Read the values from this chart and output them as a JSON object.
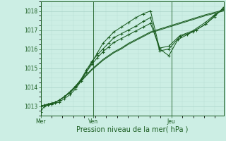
{
  "xlabel": "Pression niveau de la mer( hPa )",
  "bg_color": "#cceee4",
  "grid_color_major": "#aad4c8",
  "grid_color_minor": "#b8ddd4",
  "line_color": "#1a5c20",
  "ylim": [
    1012.5,
    1018.5
  ],
  "yticks": [
    1013,
    1014,
    1015,
    1016,
    1017,
    1018
  ],
  "day_labels": [
    "Mer",
    "Ven",
    "Jeu"
  ],
  "day_positions": [
    0.0,
    0.286,
    0.714
  ],
  "xlim": [
    0.0,
    1.0
  ],
  "series": [
    {
      "x": [
        0.0,
        0.02,
        0.04,
        0.06,
        0.08,
        0.1,
        0.13,
        0.16,
        0.19,
        0.22,
        0.25,
        0.28,
        0.31,
        0.34,
        0.37,
        0.4,
        0.44,
        0.48,
        0.52,
        0.56,
        0.6,
        0.65,
        0.7,
        0.75,
        0.8,
        0.85,
        0.9,
        0.95,
        1.0
      ],
      "y": [
        1012.7,
        1013.0,
        1013.05,
        1013.1,
        1013.15,
        1013.2,
        1013.4,
        1013.6,
        1013.9,
        1014.3,
        1014.8,
        1015.3,
        1015.8,
        1016.3,
        1016.6,
        1016.9,
        1017.15,
        1017.4,
        1017.65,
        1017.85,
        1018.0,
        1016.0,
        1015.65,
        1016.5,
        1016.75,
        1017.0,
        1017.3,
        1017.7,
        1018.2
      ],
      "has_marker": true
    },
    {
      "x": [
        0.0,
        0.02,
        0.04,
        0.06,
        0.08,
        0.1,
        0.13,
        0.16,
        0.19,
        0.22,
        0.25,
        0.28,
        0.31,
        0.34,
        0.37,
        0.4,
        0.44,
        0.48,
        0.52,
        0.56,
        0.6,
        0.65,
        0.7,
        0.76,
        0.83,
        0.9,
        0.95,
        1.0
      ],
      "y": [
        1013.0,
        1013.05,
        1013.1,
        1013.1,
        1013.2,
        1013.3,
        1013.5,
        1013.7,
        1014.0,
        1014.4,
        1014.9,
        1015.35,
        1015.7,
        1016.0,
        1016.3,
        1016.6,
        1016.8,
        1017.0,
        1017.2,
        1017.45,
        1017.65,
        1015.9,
        1016.0,
        1016.65,
        1016.9,
        1017.3,
        1017.75,
        1018.15
      ],
      "has_marker": true
    },
    {
      "x": [
        0.0,
        0.02,
        0.04,
        0.06,
        0.08,
        0.1,
        0.13,
        0.16,
        0.19,
        0.22,
        0.25,
        0.28,
        0.31,
        0.34,
        0.37,
        0.4,
        0.44,
        0.48,
        0.52,
        0.56,
        0.6,
        0.65,
        0.7,
        0.76,
        0.83,
        0.9,
        0.95,
        1.0
      ],
      "y": [
        1013.0,
        1013.05,
        1013.1,
        1013.15,
        1013.2,
        1013.3,
        1013.5,
        1013.75,
        1014.05,
        1014.4,
        1014.8,
        1015.2,
        1015.55,
        1015.85,
        1016.1,
        1016.35,
        1016.55,
        1016.75,
        1016.95,
        1017.15,
        1017.35,
        1016.05,
        1016.15,
        1016.7,
        1016.95,
        1017.4,
        1017.8,
        1018.1
      ],
      "has_marker": true
    },
    {
      "x": [
        0.0,
        0.02,
        0.04,
        0.06,
        0.08,
        0.1,
        0.13,
        0.16,
        0.19,
        0.22,
        0.25,
        0.28,
        0.31,
        0.34,
        0.37,
        0.4,
        0.44,
        0.48,
        0.52,
        0.56,
        0.6,
        0.7,
        0.8,
        0.9,
        1.0
      ],
      "y": [
        1013.0,
        1013.05,
        1013.1,
        1013.15,
        1013.2,
        1013.3,
        1013.5,
        1013.75,
        1014.05,
        1014.35,
        1014.65,
        1014.95,
        1015.2,
        1015.45,
        1015.65,
        1015.85,
        1016.05,
        1016.3,
        1016.5,
        1016.7,
        1016.9,
        1017.2,
        1017.5,
        1017.8,
        1018.05
      ],
      "has_marker": false
    },
    {
      "x": [
        0.0,
        0.02,
        0.04,
        0.06,
        0.08,
        0.1,
        0.13,
        0.16,
        0.19,
        0.22,
        0.25,
        0.28,
        0.31,
        0.34,
        0.37,
        0.4,
        0.44,
        0.48,
        0.52,
        0.56,
        0.6,
        0.7,
        0.8,
        0.9,
        1.0
      ],
      "y": [
        1013.0,
        1013.05,
        1013.1,
        1013.15,
        1013.2,
        1013.3,
        1013.5,
        1013.75,
        1014.0,
        1014.3,
        1014.6,
        1014.9,
        1015.15,
        1015.4,
        1015.6,
        1015.8,
        1016.0,
        1016.25,
        1016.45,
        1016.65,
        1016.85,
        1017.15,
        1017.45,
        1017.75,
        1018.0
      ],
      "has_marker": false
    }
  ]
}
